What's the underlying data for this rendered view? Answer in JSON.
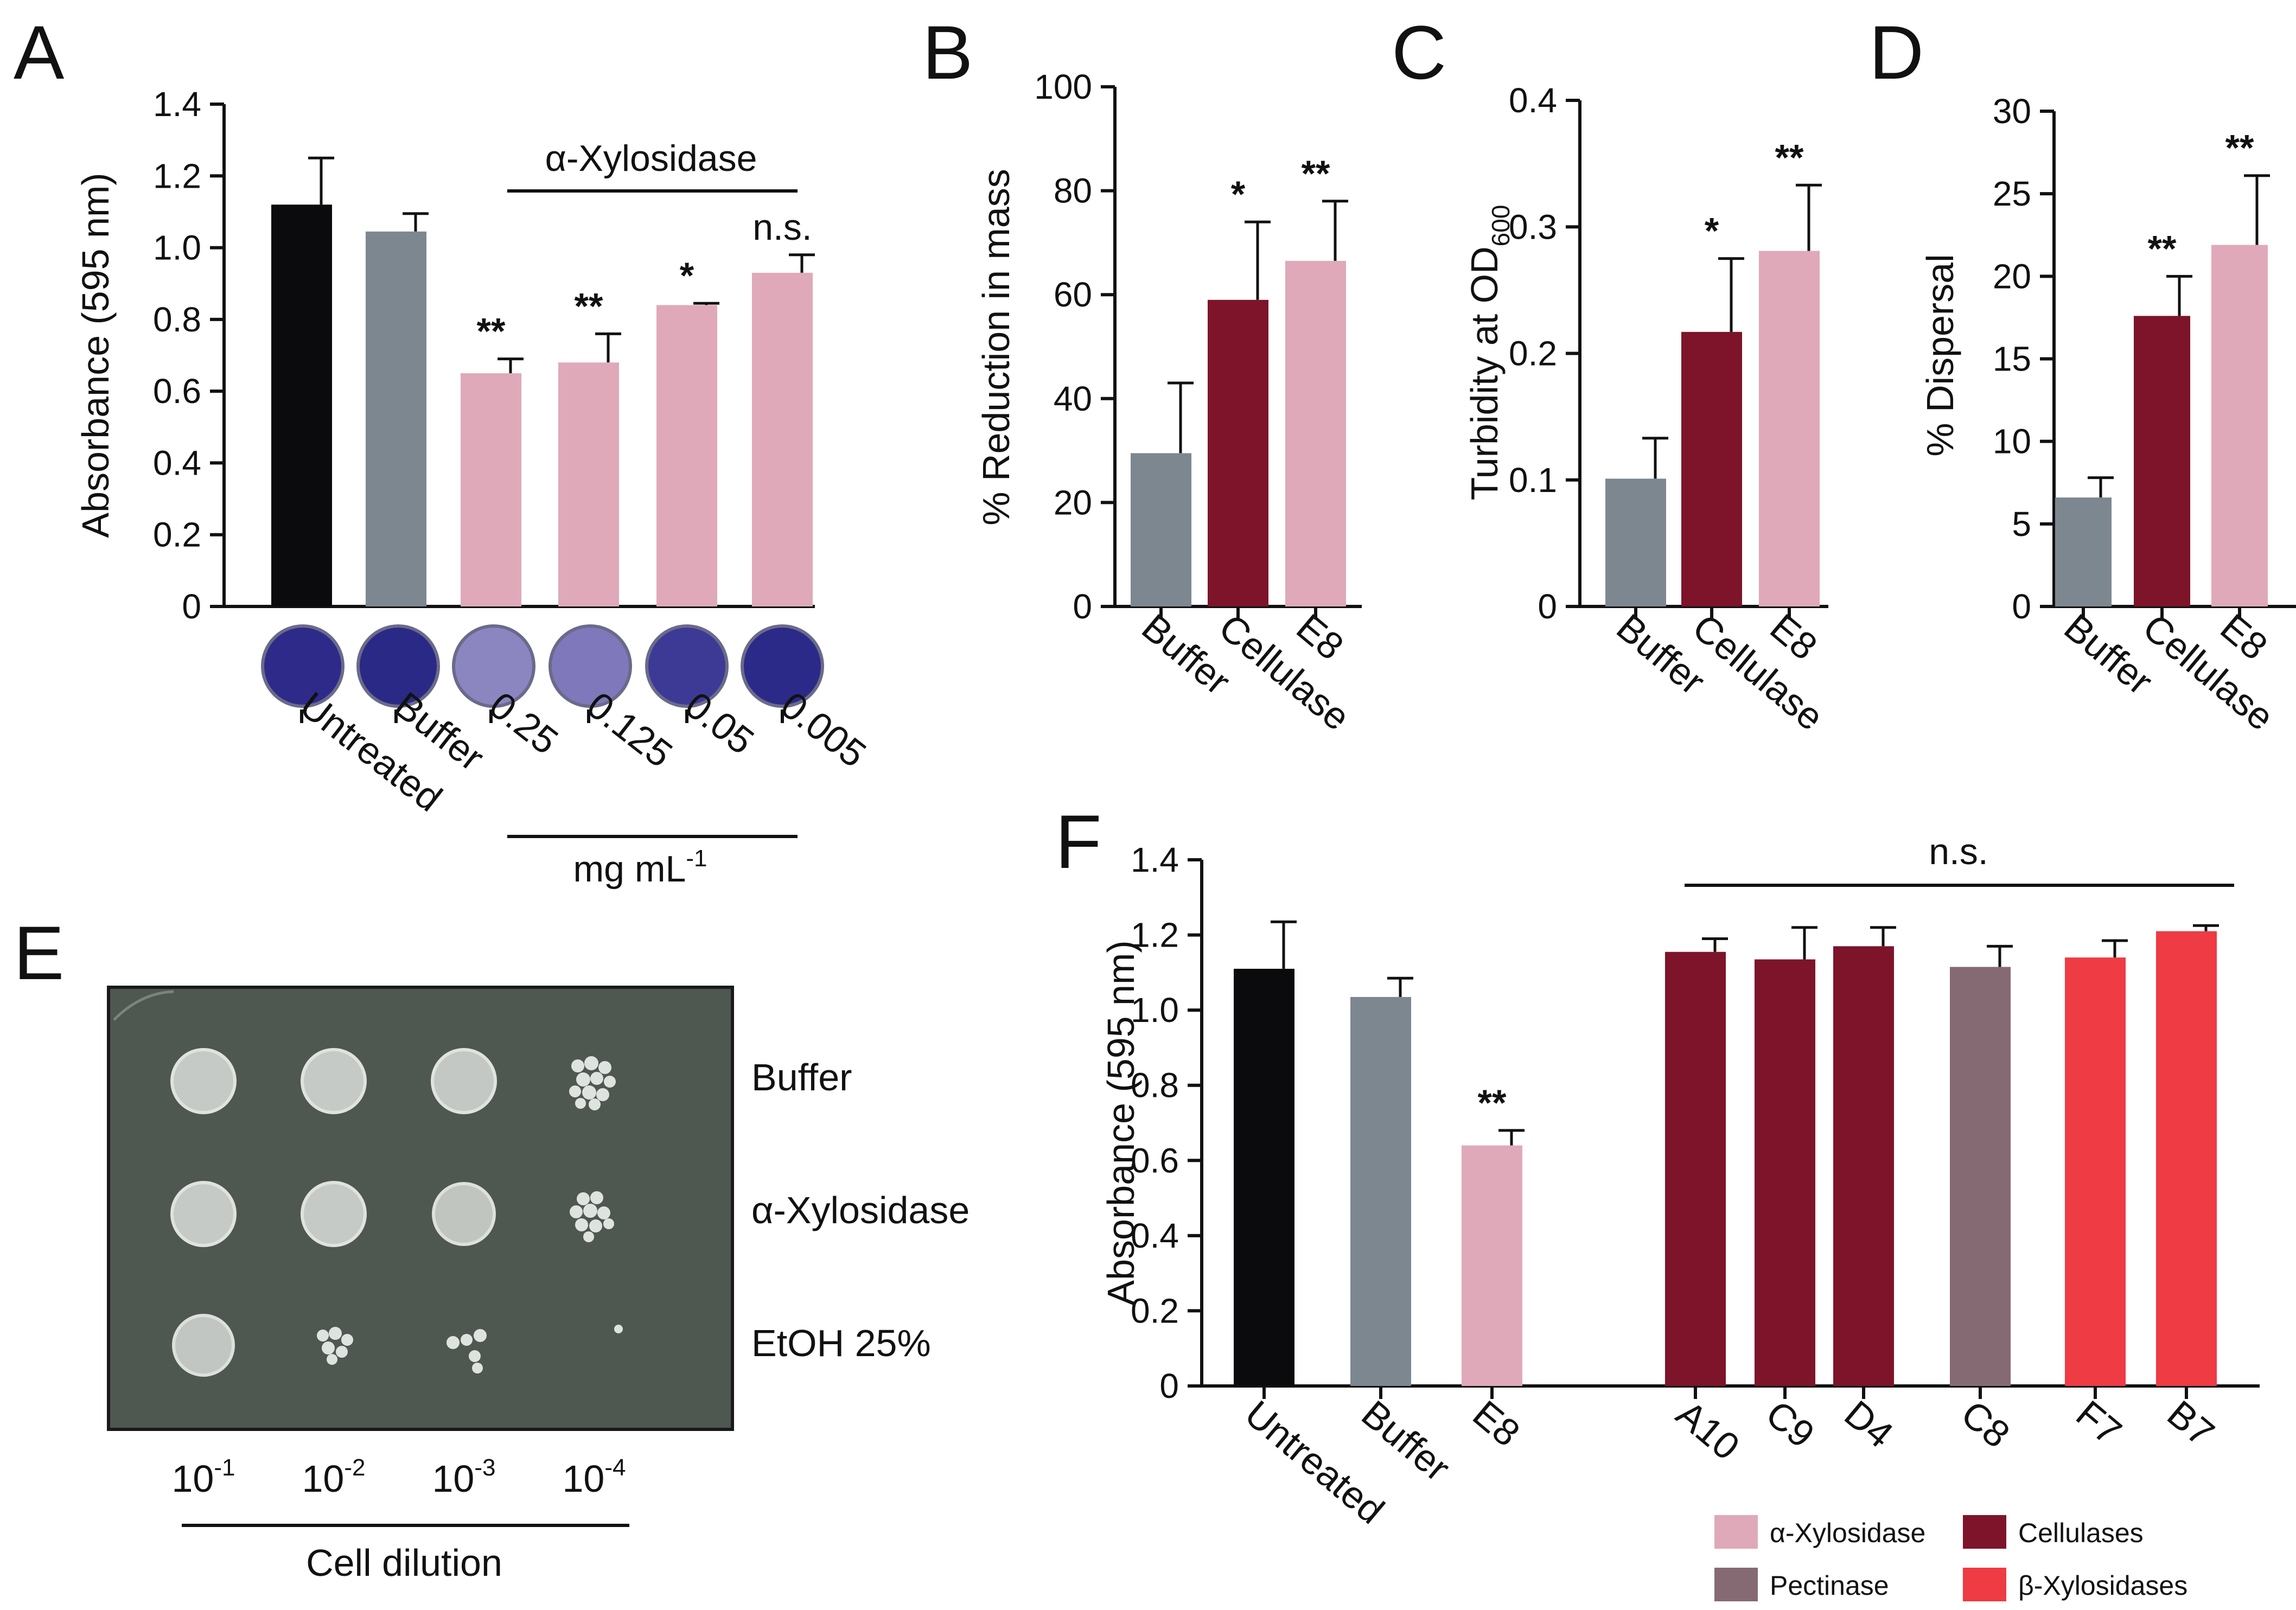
{
  "colors": {
    "black": "#0b0b0d",
    "grey": "#7d8790",
    "pink": "#dfa9b9",
    "maroon": "#7d1429",
    "mauve": "#856a74",
    "red": "#ee3b44",
    "well": "#2a2a8c",
    "plate": "#4f5751"
  },
  "chart_data": [
    {
      "panel": "A",
      "type": "bar",
      "ylabel": "Absorbance (595 nm)",
      "ylim": [
        0,
        1.4
      ],
      "yticks": [
        "0",
        "0.2",
        "0.4",
        "0.6",
        "0.8",
        "1.0",
        "1.2",
        "1.4"
      ],
      "categories": [
        "Untreated",
        "Buffer",
        "0.25",
        "0.125",
        "0.05",
        "0.005"
      ],
      "values": [
        1.12,
        1.045,
        0.65,
        0.68,
        0.84,
        0.93
      ],
      "errors": [
        0.13,
        0.05,
        0.04,
        0.08,
        0.005,
        0.05
      ],
      "colors": [
        "black",
        "grey",
        "pink",
        "pink",
        "pink",
        "pink"
      ],
      "significance": [
        "",
        "",
        "**",
        "**",
        "*",
        "n.s."
      ],
      "group_label": "α-Xylosidase",
      "unit_label": "mg mL",
      "unit_exponent": "-1"
    },
    {
      "panel": "B",
      "type": "bar",
      "ylabel": "% Reduction in mass",
      "ylim": [
        0,
        100
      ],
      "yticks": [
        "0",
        "20",
        "40",
        "60",
        "80",
        "100"
      ],
      "categories": [
        "Buffer",
        "Cellulase",
        "E8"
      ],
      "values": [
        29.5,
        59,
        66.5
      ],
      "errors": [
        13.5,
        15,
        11.5
      ],
      "colors": [
        "grey",
        "maroon",
        "pink"
      ],
      "significance": [
        "",
        "*",
        "**"
      ]
    },
    {
      "panel": "C",
      "type": "bar",
      "ylabel": "Turbidity at OD",
      "ylabel_sub": "600",
      "ylim": [
        0,
        0.4
      ],
      "yticks": [
        "0",
        "0.1",
        "0.2",
        "0.3",
        "0.4"
      ],
      "categories": [
        "Buffer",
        "Cellulase",
        "E8"
      ],
      "values": [
        0.101,
        0.217,
        0.281
      ],
      "errors": [
        0.032,
        0.058,
        0.052
      ],
      "colors": [
        "grey",
        "maroon",
        "pink"
      ],
      "significance": [
        "",
        "*",
        "**"
      ]
    },
    {
      "panel": "D",
      "type": "bar",
      "ylabel": "% Dispersal",
      "ylim": [
        0,
        30
      ],
      "yticks": [
        "0",
        "5",
        "10",
        "15",
        "20",
        "25",
        "30"
      ],
      "categories": [
        "Buffer",
        "Cellulase",
        "E8"
      ],
      "values": [
        6.6,
        17.6,
        21.9
      ],
      "errors": [
        1.2,
        2.4,
        4.2
      ],
      "colors": [
        "grey",
        "maroon",
        "pink"
      ],
      "significance": [
        "",
        "**",
        "**"
      ]
    },
    {
      "panel": "F",
      "type": "bar",
      "ylabel": "Absorbance (595 nm)",
      "ylim": [
        0,
        1.4
      ],
      "yticks": [
        "0",
        "0.2",
        "0.4",
        "0.6",
        "0.8",
        "1.0",
        "1.2",
        "1.4"
      ],
      "categories": [
        "Untreated",
        "Buffer",
        "E8",
        "A10",
        "C9",
        "D4",
        "C8",
        "F7",
        "B7"
      ],
      "values": [
        1.11,
        1.035,
        0.64,
        1.155,
        1.135,
        1.17,
        1.115,
        1.14,
        1.21
      ],
      "errors": [
        0.125,
        0.05,
        0.04,
        0.035,
        0.085,
        0.05,
        0.055,
        0.045,
        0.015
      ],
      "colors": [
        "black",
        "grey",
        "pink",
        "maroon",
        "maroon",
        "maroon",
        "mauve",
        "red",
        "red"
      ],
      "significance": [
        "",
        "",
        "**",
        "",
        "",
        "",
        "",
        "",
        ""
      ],
      "group_label": "n.s.",
      "legend": [
        {
          "label": "α-Xylosidase",
          "color": "pink"
        },
        {
          "label": "Cellulases",
          "color": "maroon"
        },
        {
          "label": "Pectinase",
          "color": "mauve"
        },
        {
          "label": "β-Xylosidases",
          "color": "red"
        }
      ]
    }
  ],
  "panel_letters": [
    "A",
    "B",
    "C",
    "D",
    "E",
    "F"
  ],
  "panel_e": {
    "rows": [
      "Buffer",
      "α-Xylosidase",
      "EtOH 25%"
    ],
    "dilutions": [
      {
        "base": "10",
        "exp": "-1"
      },
      {
        "base": "10",
        "exp": "-2"
      },
      {
        "base": "10",
        "exp": "-3"
      },
      {
        "base": "10",
        "exp": "-4"
      }
    ],
    "xlabel": "Cell dilution"
  }
}
